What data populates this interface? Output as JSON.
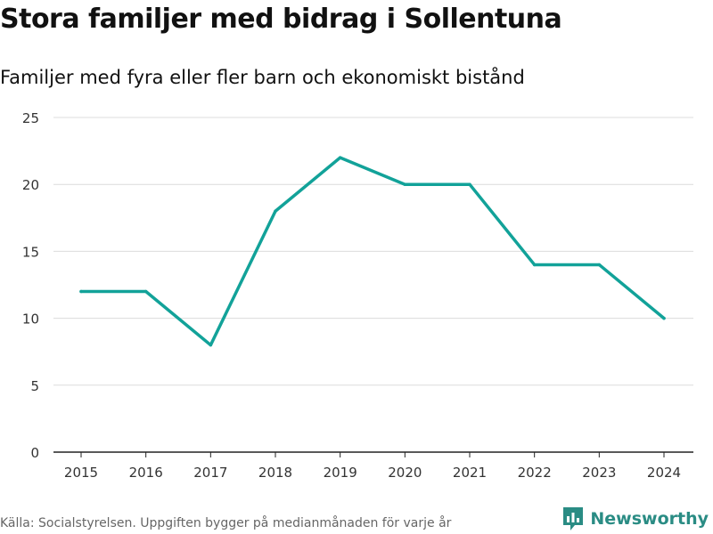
{
  "chart_data": {
    "type": "line",
    "title": "Stora familjer med bidrag i Sollentuna",
    "subtitle": "Familjer med fyra eller fler barn och ekonomiskt bistånd",
    "xlabel": "",
    "ylabel": "",
    "x": [
      "2015",
      "2016",
      "2017",
      "2018",
      "2019",
      "2020",
      "2021",
      "2022",
      "2023",
      "2024"
    ],
    "series": [
      {
        "name": "Familjer",
        "values": [
          12,
          12,
          8,
          18,
          22,
          20,
          20,
          14,
          14,
          10
        ],
        "color": "#12a299"
      }
    ],
    "ylim": [
      0,
      25
    ],
    "yticks": [
      0,
      5,
      10,
      15,
      20,
      25
    ],
    "grid": true
  },
  "footer": {
    "source": "Källa: Socialstyrelsen. Uppgiften bygger på medianmånaden för varje år"
  },
  "brand": {
    "name": "Newsworthy",
    "logo_icon": "newsworthy-logo-icon",
    "color": "#2a8c84"
  }
}
